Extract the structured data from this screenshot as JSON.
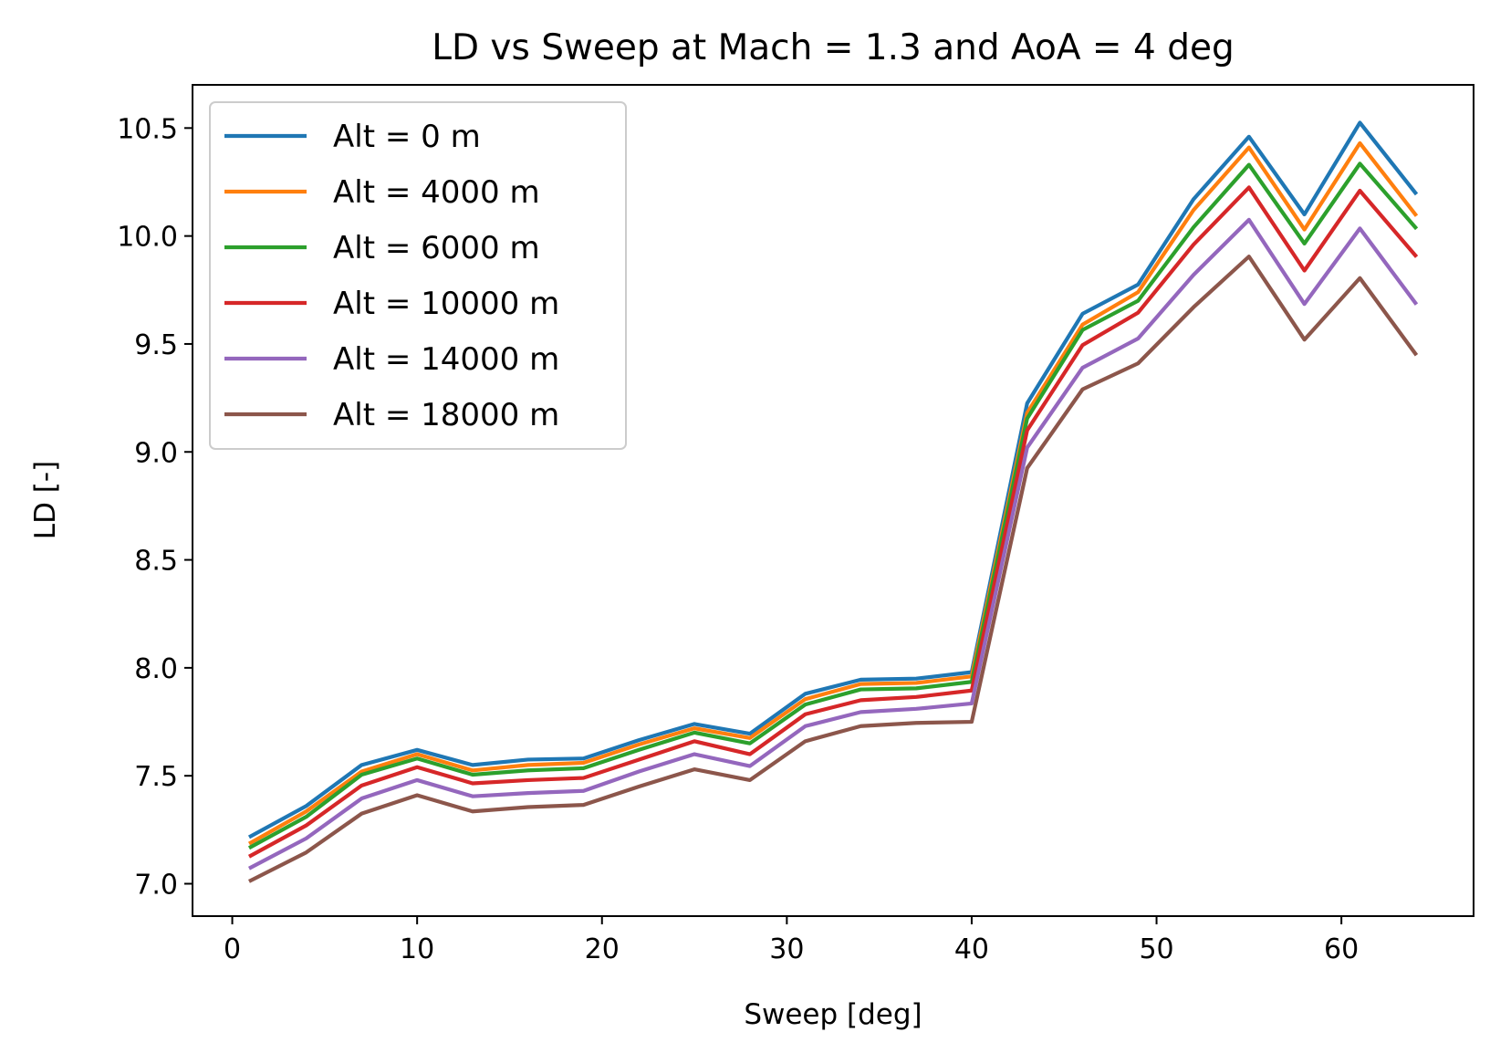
{
  "chart_data": {
    "type": "line",
    "title": "LD vs Sweep at Mach = 1.3 and AoA = 4 deg",
    "xlabel": "Sweep [deg]",
    "ylabel": "LD [-]",
    "xlim": [
      -2.15,
      67.15
    ],
    "ylim": [
      6.85,
      10.7
    ],
    "xticks": [
      0,
      10,
      20,
      30,
      40,
      50,
      60
    ],
    "xtick_labels": [
      "0",
      "10",
      "20",
      "30",
      "40",
      "50",
      "60"
    ],
    "yticks": [
      7.0,
      7.5,
      8.0,
      8.5,
      9.0,
      9.5,
      10.0,
      10.5
    ],
    "ytick_labels": [
      "7.0",
      "7.5",
      "8.0",
      "8.5",
      "9.0",
      "9.5",
      "10.0",
      "10.5"
    ],
    "grid": false,
    "legend_position": "top-left",
    "x": [
      1,
      4,
      7,
      10,
      13,
      16,
      19,
      22,
      25,
      28,
      31,
      34,
      37,
      40,
      43,
      46,
      49,
      52,
      55,
      58,
      61,
      64
    ],
    "series": [
      {
        "name": "Alt = 0 m",
        "color": "#1f77b4",
        "values": [
          7.22,
          7.36,
          7.55,
          7.62,
          7.55,
          7.575,
          7.58,
          7.665,
          7.74,
          7.695,
          7.88,
          7.945,
          7.95,
          7.98,
          9.225,
          9.64,
          9.775,
          10.17,
          10.46,
          10.1,
          10.525,
          10.2
        ]
      },
      {
        "name": "Alt = 4000 m",
        "color": "#ff7f0e",
        "values": [
          7.19,
          7.335,
          7.52,
          7.6,
          7.525,
          7.55,
          7.56,
          7.645,
          7.72,
          7.675,
          7.855,
          7.925,
          7.93,
          7.96,
          9.18,
          9.59,
          9.74,
          10.12,
          10.41,
          10.03,
          10.43,
          10.1
        ]
      },
      {
        "name": "Alt = 6000 m",
        "color": "#2ca02c",
        "values": [
          7.17,
          7.31,
          7.505,
          7.58,
          7.505,
          7.525,
          7.535,
          7.62,
          7.7,
          7.65,
          7.83,
          7.9,
          7.905,
          7.935,
          9.155,
          9.565,
          9.7,
          10.04,
          10.33,
          9.965,
          10.335,
          10.04
        ]
      },
      {
        "name": "Alt = 10000 m",
        "color": "#d62728",
        "values": [
          7.13,
          7.27,
          7.455,
          7.54,
          7.465,
          7.48,
          7.49,
          7.575,
          7.66,
          7.6,
          7.785,
          7.85,
          7.865,
          7.895,
          9.1,
          9.495,
          9.645,
          9.96,
          10.225,
          9.84,
          10.21,
          9.91
        ]
      },
      {
        "name": "Alt = 14000 m",
        "color": "#9467bd",
        "values": [
          7.075,
          7.21,
          7.395,
          7.48,
          7.405,
          7.42,
          7.43,
          7.52,
          7.6,
          7.545,
          7.73,
          7.795,
          7.81,
          7.835,
          9.02,
          9.39,
          9.525,
          9.82,
          10.075,
          9.685,
          10.035,
          9.69
        ]
      },
      {
        "name": "Alt = 18000 m",
        "color": "#8c564b",
        "values": [
          7.015,
          7.145,
          7.325,
          7.41,
          7.335,
          7.355,
          7.365,
          7.45,
          7.53,
          7.48,
          7.66,
          7.73,
          7.745,
          7.75,
          8.925,
          9.29,
          9.41,
          9.67,
          9.905,
          9.52,
          9.805,
          9.455
        ]
      }
    ]
  }
}
